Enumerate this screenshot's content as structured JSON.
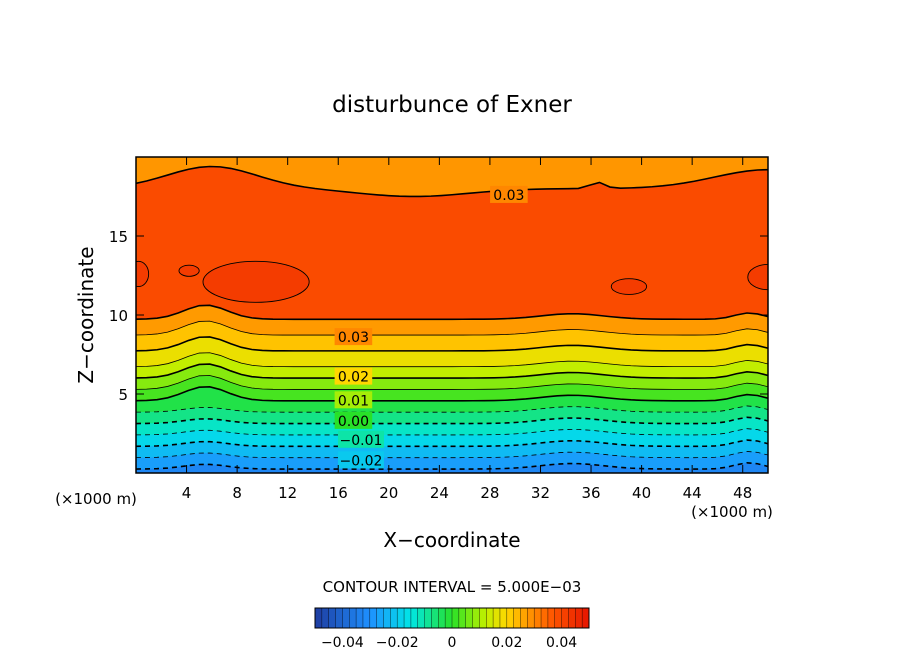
{
  "chart_data": {
    "type": "contour",
    "title": "disturbunce of Exner",
    "xlabel": "X−coordinate",
    "ylabel": "Z−coordinate",
    "x_unit_left": "(×1000 m)",
    "x_unit_right": "(×1000 m)",
    "xlim": [
      0,
      50
    ],
    "ylim": [
      0,
      20
    ],
    "x_ticks": [
      4,
      8,
      12,
      16,
      20,
      24,
      28,
      32,
      36,
      40,
      44,
      48
    ],
    "y_ticks": [
      5,
      10,
      15
    ],
    "contour_interval_text": "CONTOUR INTERVAL = 5.000E−03",
    "contour_interval": 0.005,
    "contour_labels": [
      {
        "text": "0.03",
        "x": 29.5,
        "y": 17.6
      },
      {
        "text": "0.03",
        "x": 17.2,
        "y": 8.6
      },
      {
        "text": "0.02",
        "x": 17.2,
        "y": 6.1
      },
      {
        "text": "0.01",
        "x": 17.2,
        "y": 4.6
      },
      {
        "text": "0.00",
        "x": 17.2,
        "y": 3.3
      },
      {
        "text": "−0.01",
        "x": 17.8,
        "y": 2.1
      },
      {
        "text": "−0.02",
        "x": 17.8,
        "y": 0.8
      }
    ],
    "colorbar": {
      "min": -0.05,
      "max": 0.05,
      "tick_labels": [
        "−0.04",
        "−0.02",
        "0",
        "0.02",
        "0.04"
      ],
      "tick_values": [
        -0.04,
        -0.02,
        0,
        0.02,
        0.04
      ]
    },
    "field_summary": {
      "max_value": 0.045,
      "min_value": -0.03
    },
    "colors": {
      "low": "#1e90ff",
      "mid": "#39d400",
      "high": "#ff3a00"
    }
  }
}
